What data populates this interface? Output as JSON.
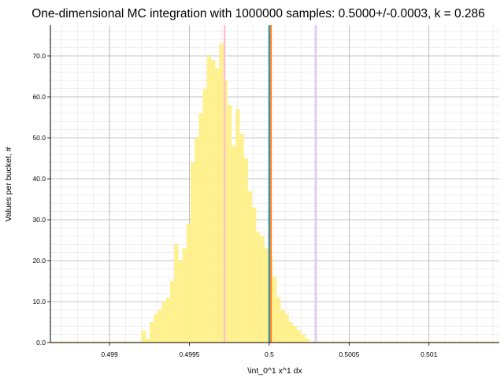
{
  "chart_data": {
    "type": "bar",
    "title": "One-dimensional MC integration with 1000000 samples: 0.5000+/-0.0003, k = 0.286",
    "xlabel": "\\int_0^1 x^1 dx",
    "ylabel": "Values per bucket, #",
    "xlim": [
      0.49863,
      0.50144
    ],
    "ylim": [
      0,
      77.5
    ],
    "x_ticks": [
      0.499,
      0.4995,
      0.5,
      0.5005,
      0.501
    ],
    "x_tick_labels": [
      "0.499",
      "0.4995",
      "0.5",
      "0.5005",
      "0.501"
    ],
    "y_ticks": [
      0,
      10,
      20,
      30,
      40,
      50,
      60,
      70
    ],
    "y_tick_labels": [
      "0.0",
      "10.0",
      "20.0",
      "30.0",
      "40.0",
      "50.0",
      "60.0",
      "70.0"
    ],
    "grid": true,
    "bar_color": "#fff08a",
    "bins": {
      "start": 0.4992,
      "width": 2.56e-05,
      "values": [
        3,
        1,
        5,
        7,
        8,
        10,
        11,
        15,
        24,
        20,
        23,
        29,
        44,
        50,
        56,
        62,
        70,
        69,
        67,
        73,
        64,
        58,
        48,
        57,
        51,
        45,
        37,
        33,
        27,
        26,
        23,
        21,
        16,
        11,
        8,
        7,
        5,
        4,
        3,
        2,
        1
      ]
    },
    "vertical_lines": [
      {
        "x": 0.49972,
        "color": "#ffc0c8"
      },
      {
        "x": 0.5,
        "color": "#1f9bb0"
      },
      {
        "x": 0.50001,
        "color": "#ff7f27"
      },
      {
        "x": 0.50029,
        "color": "#e3c6f5"
      }
    ]
  }
}
